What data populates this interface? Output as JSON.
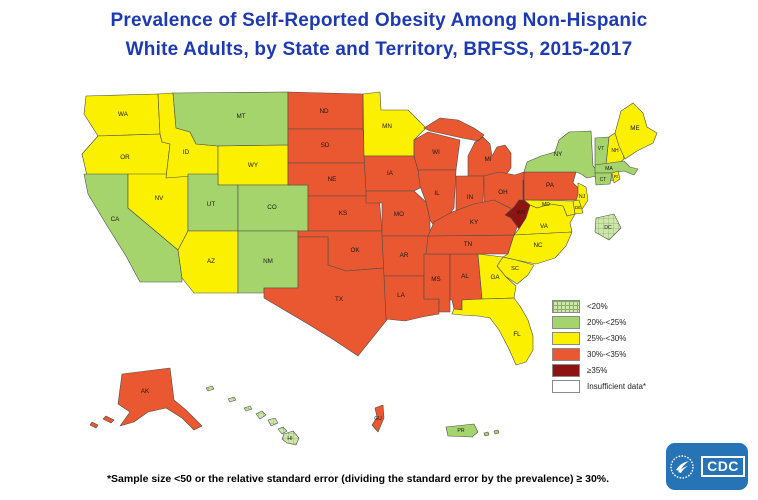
{
  "title": {
    "line1": "Prevalence of Self-Reported Obesity Among Non-Hispanic",
    "line2": "White Adults, by State and Territory, BRFSS, 2015-2017"
  },
  "legend": {
    "items": [
      {
        "key": "lt20",
        "label": "<20%"
      },
      {
        "key": "c20_25",
        "label": "20%-<25%"
      },
      {
        "key": "c25_30",
        "label": "25%-<30%"
      },
      {
        "key": "c30_35",
        "label": "30%-<35%"
      },
      {
        "key": "ge35",
        "label": "≥35%"
      },
      {
        "key": "insufficient",
        "label": "Insufficient data*"
      }
    ]
  },
  "map": {
    "colors": {
      "lt20": "hatch",
      "c20_25": "#a5d46d",
      "c25_30": "#faf000",
      "c30_35": "#e95830",
      "ge35": "#8e1313",
      "insufficient": "#ffffff"
    },
    "hatch": {
      "base": "#cfe6ad",
      "line": "#86b25c"
    },
    "states": [
      {
        "abbr": "WA",
        "category": "c25_30"
      },
      {
        "abbr": "OR",
        "category": "c25_30"
      },
      {
        "abbr": "CA",
        "category": "c20_25"
      },
      {
        "abbr": "NV",
        "category": "c25_30"
      },
      {
        "abbr": "ID",
        "category": "c25_30"
      },
      {
        "abbr": "MT",
        "category": "c20_25"
      },
      {
        "abbr": "WY",
        "category": "c25_30"
      },
      {
        "abbr": "UT",
        "category": "c20_25"
      },
      {
        "abbr": "CO",
        "category": "c20_25"
      },
      {
        "abbr": "AZ",
        "category": "c25_30"
      },
      {
        "abbr": "NM",
        "category": "c20_25"
      },
      {
        "abbr": "ND",
        "category": "c30_35"
      },
      {
        "abbr": "SD",
        "category": "c30_35"
      },
      {
        "abbr": "NE",
        "category": "c30_35"
      },
      {
        "abbr": "KS",
        "category": "c30_35"
      },
      {
        "abbr": "OK",
        "category": "c30_35"
      },
      {
        "abbr": "TX",
        "category": "c30_35"
      },
      {
        "abbr": "MN",
        "category": "c25_30"
      },
      {
        "abbr": "IA",
        "category": "c30_35"
      },
      {
        "abbr": "MO",
        "category": "c30_35"
      },
      {
        "abbr": "AR",
        "category": "c30_35"
      },
      {
        "abbr": "LA",
        "category": "c30_35"
      },
      {
        "abbr": "WI",
        "category": "c30_35"
      },
      {
        "abbr": "IL",
        "category": "c30_35"
      },
      {
        "abbr": "MI",
        "category": "c30_35"
      },
      {
        "abbr": "IN",
        "category": "c30_35"
      },
      {
        "abbr": "OH",
        "category": "c30_35"
      },
      {
        "abbr": "MS",
        "category": "c30_35"
      },
      {
        "abbr": "AL",
        "category": "c30_35"
      },
      {
        "abbr": "TN",
        "category": "c30_35"
      },
      {
        "abbr": "KY",
        "category": "c30_35"
      },
      {
        "abbr": "WV",
        "category": "ge35"
      },
      {
        "abbr": "PA",
        "category": "c30_35"
      },
      {
        "abbr": "NY",
        "category": "c20_25"
      },
      {
        "abbr": "VT",
        "category": "c20_25"
      },
      {
        "abbr": "NH",
        "category": "c25_30"
      },
      {
        "abbr": "ME",
        "category": "c25_30"
      },
      {
        "abbr": "MA",
        "category": "c20_25"
      },
      {
        "abbr": "CT",
        "category": "c20_25"
      },
      {
        "abbr": "RI",
        "category": "c25_30"
      },
      {
        "abbr": "NJ",
        "category": "c25_30"
      },
      {
        "abbr": "DE",
        "category": "c25_30"
      },
      {
        "abbr": "MD",
        "category": "c25_30"
      },
      {
        "abbr": "VA",
        "category": "c25_30"
      },
      {
        "abbr": "NC",
        "category": "c25_30"
      },
      {
        "abbr": "SC",
        "category": "c25_30"
      },
      {
        "abbr": "GA",
        "category": "c25_30"
      },
      {
        "abbr": "FL",
        "category": "c25_30"
      },
      {
        "abbr": "DC",
        "category": "lt20"
      },
      {
        "abbr": "AK",
        "category": "c30_35"
      },
      {
        "abbr": "HI",
        "category": "lt20"
      },
      {
        "abbr": "GU",
        "category": "c30_35"
      },
      {
        "abbr": "PR",
        "category": "c20_25"
      }
    ]
  },
  "footnote": "*Sample size <50 or the relative standard error (dividing the standard error by the prevalence) ≥ 30%.",
  "logo": {
    "label": "CDC"
  }
}
